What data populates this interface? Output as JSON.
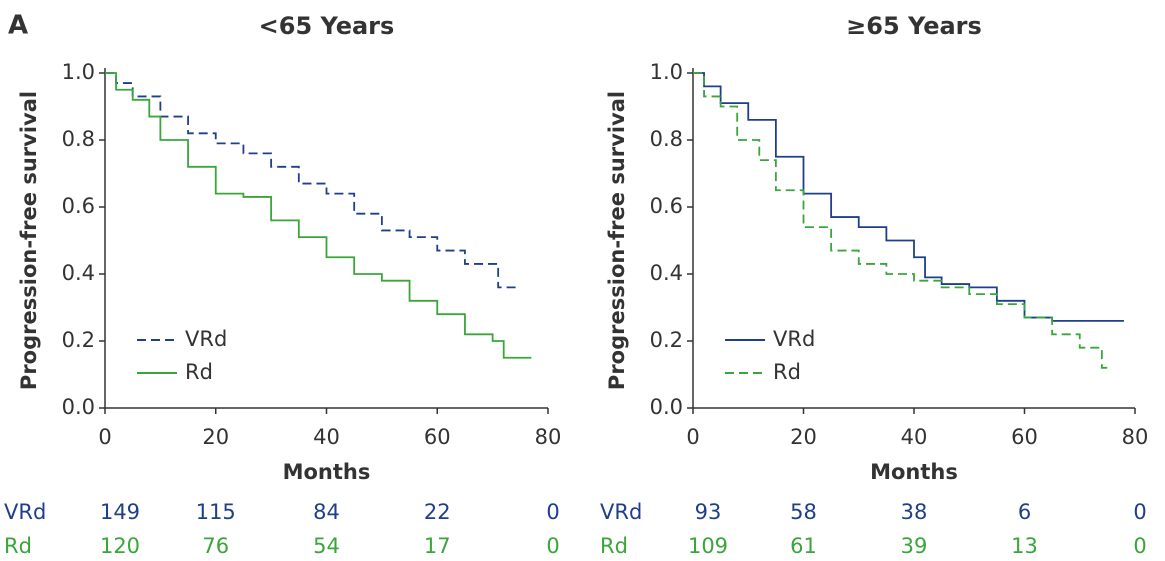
{
  "panel_label": "A",
  "chart_data": [
    {
      "type": "line",
      "title": "<65 Years",
      "x_label": "Months",
      "y_label": "Progression-free survival",
      "xlim": [
        0,
        80
      ],
      "ylim": [
        0,
        1
      ],
      "xticks": [
        0,
        20,
        40,
        60,
        80
      ],
      "yticks": [
        {
          "value": 0,
          "label": "0.0"
        },
        0.2,
        0.4,
        0.6,
        0.8,
        {
          "value": 1,
          "label": "1.0"
        }
      ],
      "series": [
        {
          "name": "VRd",
          "color": "#1f3f8c",
          "dashed": true,
          "x": [
            0,
            1,
            2,
            5,
            10,
            15,
            20,
            25,
            30,
            35,
            40,
            45,
            50,
            55,
            60,
            65,
            70,
            71,
            75
          ],
          "values": [
            1,
            1,
            0.97,
            0.93,
            0.87,
            0.82,
            0.79,
            0.76,
            0.72,
            0.67,
            0.64,
            0.58,
            0.53,
            0.51,
            0.47,
            0.43,
            0.43,
            0.36,
            0.36
          ]
        },
        {
          "name": "Rd",
          "color": "#3aa63a",
          "dashed": false,
          "x": [
            0,
            2,
            5,
            8,
            10,
            15,
            20,
            25,
            30,
            35,
            40,
            45,
            50,
            55,
            60,
            65,
            70,
            72,
            77
          ],
          "values": [
            1,
            0.95,
            0.92,
            0.87,
            0.8,
            0.72,
            0.64,
            0.63,
            0.56,
            0.51,
            0.45,
            0.4,
            0.38,
            0.32,
            0.28,
            0.22,
            0.2,
            0.15,
            0.15
          ]
        }
      ],
      "risk_table": [
        {
          "name": "VRd",
          "color": "#1f3f8c",
          "values": [
            149,
            115,
            84,
            22,
            0
          ]
        },
        {
          "name": "Rd",
          "color": "#3aa63a",
          "values": [
            120,
            76,
            54,
            17,
            0
          ]
        }
      ]
    },
    {
      "type": "line",
      "title": "≥65 Years",
      "x_label": "Months",
      "y_label": "Progression-free survival",
      "xlim": [
        0,
        80
      ],
      "ylim": [
        0,
        1
      ],
      "xticks": [
        0,
        20,
        40,
        60,
        80
      ],
      "yticks": [
        {
          "value": 0,
          "label": "0.0"
        },
        0.2,
        0.4,
        0.6,
        0.8,
        {
          "value": 1,
          "label": "1.0"
        }
      ],
      "series": [
        {
          "name": "VRd",
          "color": "#1f3f8c",
          "dashed": false,
          "x": [
            0,
            2,
            5,
            10,
            15,
            20,
            25,
            30,
            35,
            40,
            42,
            45,
            50,
            55,
            60,
            65,
            70,
            78
          ],
          "values": [
            1,
            0.96,
            0.91,
            0.86,
            0.75,
            0.64,
            0.57,
            0.54,
            0.5,
            0.45,
            0.39,
            0.37,
            0.36,
            0.32,
            0.27,
            0.26,
            0.26,
            0.26
          ]
        },
        {
          "name": "Rd",
          "color": "#3aa63a",
          "dashed": true,
          "x": [
            0,
            2,
            5,
            8,
            12,
            15,
            20,
            25,
            30,
            35,
            40,
            45,
            50,
            55,
            60,
            65,
            70,
            74,
            75
          ],
          "values": [
            1,
            0.93,
            0.9,
            0.8,
            0.74,
            0.65,
            0.54,
            0.47,
            0.43,
            0.4,
            0.38,
            0.36,
            0.34,
            0.31,
            0.27,
            0.22,
            0.18,
            0.12,
            0.12
          ]
        }
      ],
      "risk_table": [
        {
          "name": "VRd",
          "color": "#1f3f8c",
          "values": [
            93,
            58,
            38,
            6,
            0
          ]
        },
        {
          "name": "Rd",
          "color": "#3aa63a",
          "values": [
            109,
            61,
            39,
            13,
            0
          ]
        }
      ]
    }
  ]
}
